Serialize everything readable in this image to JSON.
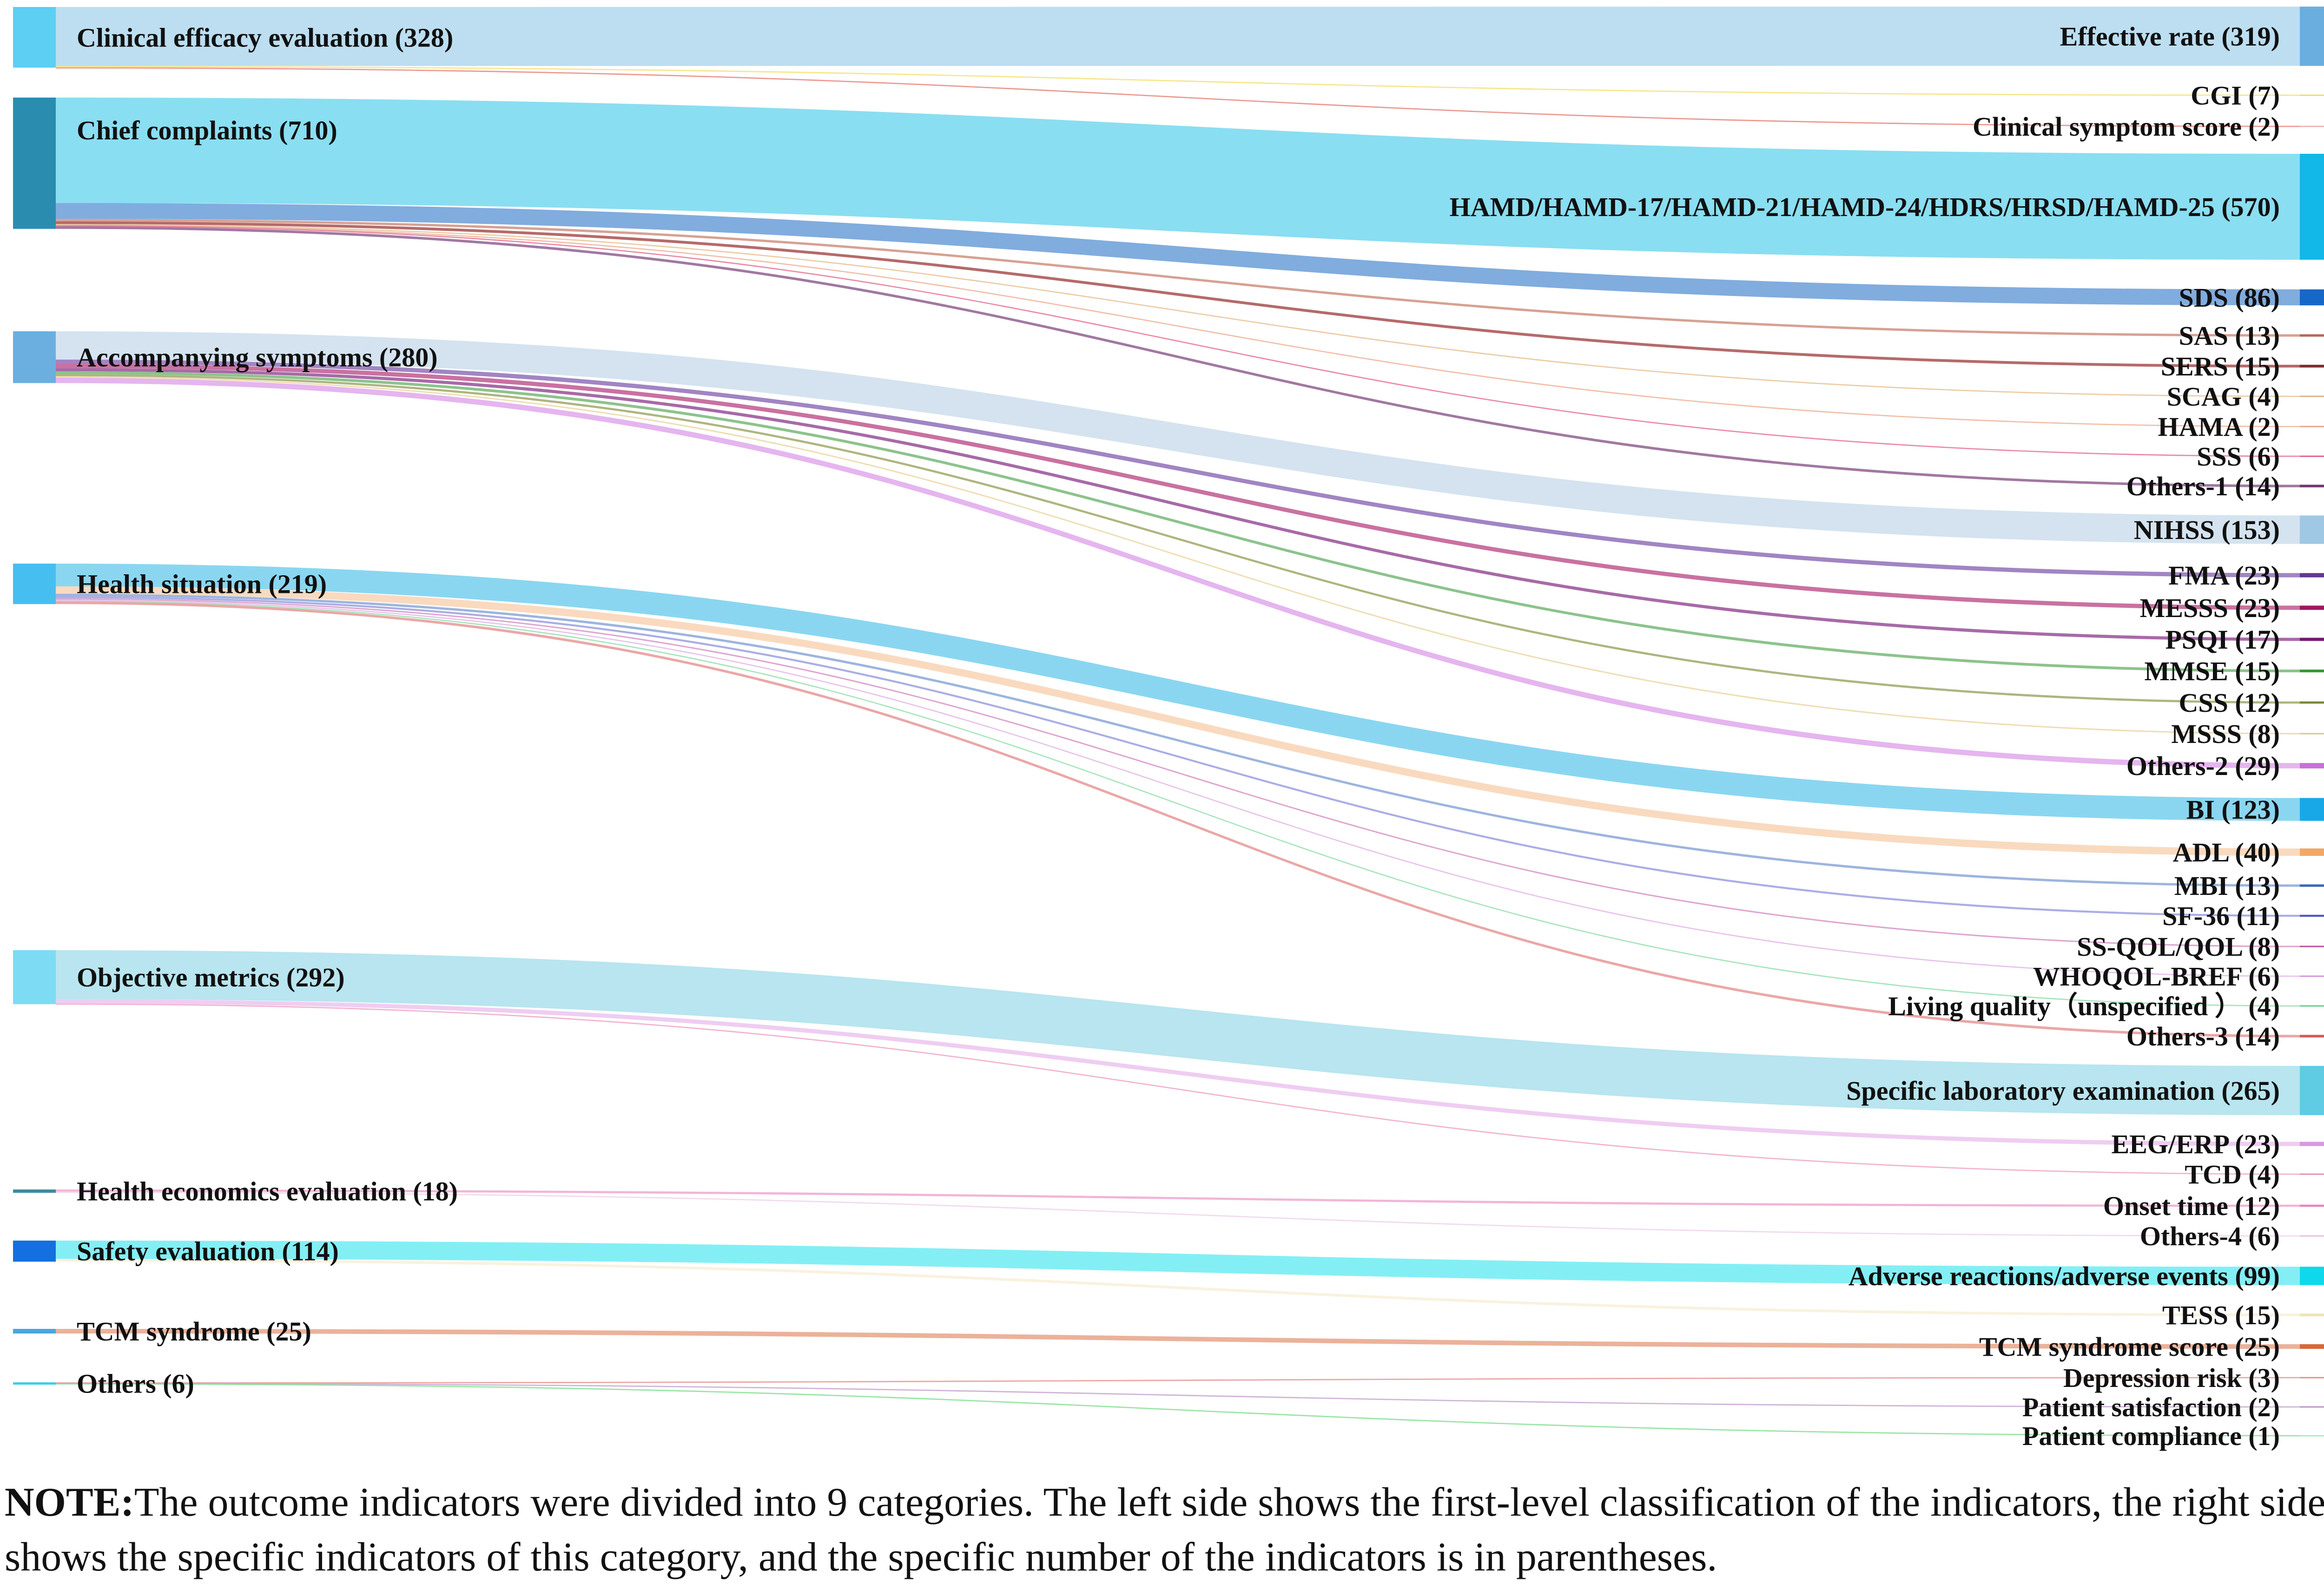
{
  "chart_data": {
    "type": "sankey",
    "left_nodes": [
      {
        "label": "Clinical efficacy evaluation (328)",
        "value": 328,
        "color": "#5ccff2"
      },
      {
        "label": "Chief complaints (710)",
        "value": 710,
        "color": "#2a8db0"
      },
      {
        "label": "Accompanying symptoms (280)",
        "value": 280,
        "color": "#6aafe0"
      },
      {
        "label": "Health situation (219)",
        "value": 219,
        "color": "#46bff0"
      },
      {
        "label": "Objective metrics (292)",
        "value": 292,
        "color": "#7ddcf4"
      },
      {
        "label": "Health economics evaluation (18)",
        "value": 18,
        "color": "#3b8a9e"
      },
      {
        "label": "Safety evaluation (114)",
        "value": 114,
        "color": "#1470e0"
      },
      {
        "label": "TCM syndrome (25)",
        "value": 25,
        "color": "#4aa6df"
      },
      {
        "label": "Others (6)",
        "value": 6,
        "color": "#3ccfe6"
      }
    ],
    "right_nodes": [
      {
        "label": "Effective rate (319)",
        "value": 319,
        "source": 0,
        "color": "#b8dcef",
        "bar": "#6aaee0"
      },
      {
        "label": "CGI (7)",
        "value": 7,
        "source": 0,
        "color": "#f4e27a",
        "bar": "#e8d870"
      },
      {
        "label": "Clinical symptom score (2)",
        "value": 2,
        "source": 0,
        "color": "#e88a80",
        "bar": "#f0b0b0"
      },
      {
        "label": "HAMD/HAMD-17/HAMD-21/HAMD-24/HDRS/HRSD/HAMD-25 (570)",
        "value": 570,
        "source": 1,
        "color": "#84dcf0",
        "bar": "#12b8e8"
      },
      {
        "label": "SDS (86)",
        "value": 86,
        "source": 1,
        "color": "#7aa8dc",
        "bar": "#1668c8"
      },
      {
        "label": "SAS (13)",
        "value": 13,
        "source": 1,
        "color": "#d09080",
        "bar": "#b06858"
      },
      {
        "label": "SERS (15)",
        "value": 15,
        "source": 1,
        "color": "#a85050",
        "bar": "#803030"
      },
      {
        "label": "SCAG (4)",
        "value": 4,
        "source": 1,
        "color": "#e8c498",
        "bar": "#d8b080"
      },
      {
        "label": "HAMA (2)",
        "value": 2,
        "source": 1,
        "color": "#f0b49c",
        "bar": "#e8a088"
      },
      {
        "label": "SSS (6)",
        "value": 6,
        "source": 1,
        "color": "#e87898",
        "bar": "#e05880"
      },
      {
        "label": "Others-1 (14)",
        "value": 14,
        "source": 1,
        "color": "#906090",
        "bar": "#703870"
      },
      {
        "label": "NIHSS (153)",
        "value": 153,
        "source": 2,
        "color": "#d2e2ee",
        "bar": "#9ec8e4"
      },
      {
        "label": "FMA (23)",
        "value": 23,
        "source": 2,
        "color": "#9070b8",
        "bar": "#603890"
      },
      {
        "label": "MESSS (23)",
        "value": 23,
        "source": 2,
        "color": "#c05890",
        "bar": "#a01860"
      },
      {
        "label": "PSQI (17)",
        "value": 17,
        "source": 2,
        "color": "#985098",
        "bar": "#701870"
      },
      {
        "label": "MMSE (15)",
        "value": 15,
        "source": 2,
        "color": "#78b878",
        "bar": "#389838"
      },
      {
        "label": "CSS (12)",
        "value": 12,
        "source": 2,
        "color": "#a0a868",
        "bar": "#788838"
      },
      {
        "label": "MSSS (8)",
        "value": 8,
        "source": 2,
        "color": "#ecd8a8",
        "bar": "#e0c890"
      },
      {
        "label": "Others-2 (29)",
        "value": 29,
        "source": 2,
        "color": "#e0a8ec",
        "bar": "#c870d8"
      },
      {
        "label": "BI (123)",
        "value": 123,
        "source": 3,
        "color": "#84d4f0",
        "bar": "#18a8e8"
      },
      {
        "label": "ADL (40)",
        "value": 40,
        "source": 3,
        "color": "#f8d4b4",
        "bar": "#f0a868"
      },
      {
        "label": "MBI (13)",
        "value": 13,
        "source": 3,
        "color": "#8ca8d8",
        "bar": "#3868b8"
      },
      {
        "label": "SF-36 (11)",
        "value": 11,
        "source": 3,
        "color": "#9ca0e0",
        "bar": "#5058c0"
      },
      {
        "label": "SS-QOL/QOL (8)",
        "value": 8,
        "source": 3,
        "color": "#d898c8",
        "bar": "#b85898"
      },
      {
        "label": "WHOQOL-BREF (6)",
        "value": 6,
        "source": 3,
        "color": "#e4b8e8",
        "bar": "#d090d8"
      },
      {
        "label": "Living quality（unspecified ） (4)",
        "value": 4,
        "source": 3,
        "color": "#98e0b0",
        "bar": "#60c888"
      },
      {
        "label": "Others-3 (14)",
        "value": 14,
        "source": 3,
        "color": "#e89898",
        "bar": "#d85858"
      },
      {
        "label": "Specific laboratory examination (265)",
        "value": 265,
        "source": 4,
        "color": "#b4e4ee",
        "bar": "#60cce4"
      },
      {
        "label": "EEG/ERP (23)",
        "value": 23,
        "source": 4,
        "color": "#ecc4f0",
        "bar": "#d898e0"
      },
      {
        "label": "TCD (4)",
        "value": 4,
        "source": 4,
        "color": "#f0a8c8",
        "bar": "#e888b0"
      },
      {
        "label": "Onset time (12)",
        "value": 12,
        "source": 5,
        "color": "#f0a8d0",
        "bar": "#e888b8"
      },
      {
        "label": "Others-4 (6)",
        "value": 6,
        "source": 5,
        "color": "#f0d4ec",
        "bar": "#e8bce0"
      },
      {
        "label": "Adverse reactions/adverse events (99)",
        "value": 99,
        "source": 6,
        "color": "#7ceef4",
        "bar": "#10d8ec"
      },
      {
        "label": "TESS (15)",
        "value": 15,
        "source": 6,
        "color": "#f8f0d8",
        "bar": "#f0e4b8"
      },
      {
        "label": "TCM syndrome score (25)",
        "value": 25,
        "source": 7,
        "color": "#e8a488",
        "bar": "#d86838"
      },
      {
        "label": "Depression risk (3)",
        "value": 3,
        "source": 8,
        "color": "#e89898",
        "bar": "#e88888"
      },
      {
        "label": "Patient satisfaction (2)",
        "value": 2,
        "source": 8,
        "color": "#c8a8d0",
        "bar": "#b890c0"
      },
      {
        "label": "Patient compliance (1)",
        "value": 1,
        "source": 8,
        "color": "#88e098",
        "bar": "#a0f0b0"
      }
    ]
  },
  "note": {
    "prefix": "NOTE:",
    "text": "The outcome indicators were divided into 9 categories. The left side shows the first-level classification of the indicators, the right side shows the specific indicators of this category, and the specific number of the indicators is in parentheses."
  }
}
